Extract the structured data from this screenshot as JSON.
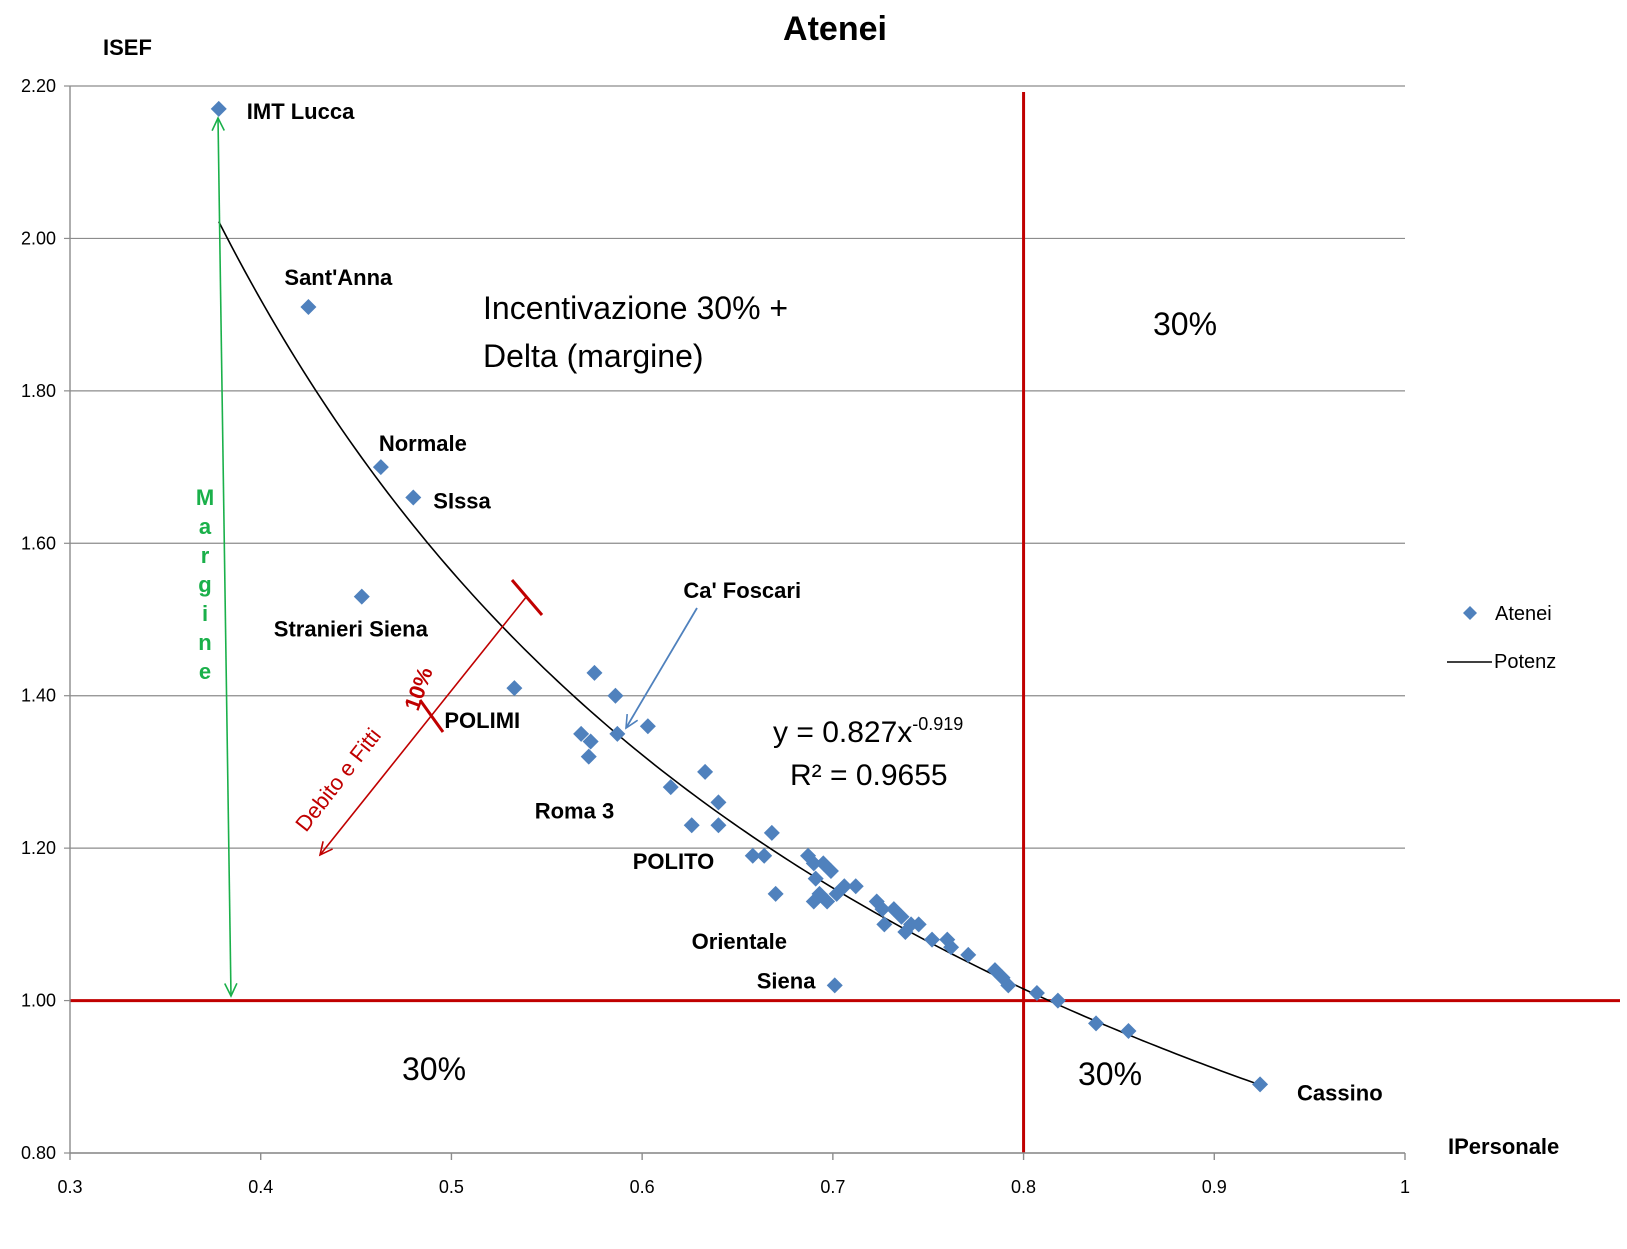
{
  "chart_data": {
    "type": "scatter",
    "title": "Atenei",
    "xlabel": "IPersonale",
    "ylabel": "ISEF",
    "xlim": [
      0.3,
      1.0
    ],
    "ylim": [
      0.8,
      2.2
    ],
    "x_ticks": [
      "0.3",
      "0.4",
      "0.5",
      "0.6",
      "0.7",
      "0.8",
      "0.9",
      "1"
    ],
    "y_ticks": [
      "0.80",
      "1.00",
      "1.20",
      "1.40",
      "1.60",
      "1.80",
      "2.00",
      "2.20"
    ],
    "grid": "horizontal",
    "legend_position": "right",
    "colors": {
      "points": "#4f81bd",
      "trend": "#000000",
      "thresholds": "#c00000",
      "margine": "#1ab04a"
    },
    "series": [
      {
        "name": "Atenei",
        "points": [
          {
            "x": 0.378,
            "y": 2.17
          },
          {
            "x": 0.425,
            "y": 1.91
          },
          {
            "x": 0.463,
            "y": 1.7
          },
          {
            "x": 0.48,
            "y": 1.66
          },
          {
            "x": 0.453,
            "y": 1.53
          },
          {
            "x": 0.533,
            "y": 1.41
          },
          {
            "x": 0.575,
            "y": 1.43
          },
          {
            "x": 0.586,
            "y": 1.4
          },
          {
            "x": 0.587,
            "y": 1.35
          },
          {
            "x": 0.603,
            "y": 1.36
          },
          {
            "x": 0.568,
            "y": 1.35
          },
          {
            "x": 0.573,
            "y": 1.34
          },
          {
            "x": 0.572,
            "y": 1.32
          },
          {
            "x": 0.633,
            "y": 1.3
          },
          {
            "x": 0.615,
            "y": 1.28
          },
          {
            "x": 0.64,
            "y": 1.26
          },
          {
            "x": 0.626,
            "y": 1.23
          },
          {
            "x": 0.64,
            "y": 1.23
          },
          {
            "x": 0.668,
            "y": 1.22
          },
          {
            "x": 0.658,
            "y": 1.19
          },
          {
            "x": 0.664,
            "y": 1.19
          },
          {
            "x": 0.67,
            "y": 1.14
          },
          {
            "x": 0.687,
            "y": 1.19
          },
          {
            "x": 0.69,
            "y": 1.18
          },
          {
            "x": 0.695,
            "y": 1.18
          },
          {
            "x": 0.699,
            "y": 1.17
          },
          {
            "x": 0.691,
            "y": 1.16
          },
          {
            "x": 0.693,
            "y": 1.14
          },
          {
            "x": 0.69,
            "y": 1.13
          },
          {
            "x": 0.697,
            "y": 1.13
          },
          {
            "x": 0.702,
            "y": 1.14
          },
          {
            "x": 0.706,
            "y": 1.15
          },
          {
            "x": 0.712,
            "y": 1.15
          },
          {
            "x": 0.723,
            "y": 1.13
          },
          {
            "x": 0.726,
            "y": 1.12
          },
          {
            "x": 0.732,
            "y": 1.12
          },
          {
            "x": 0.727,
            "y": 1.1
          },
          {
            "x": 0.736,
            "y": 1.11
          },
          {
            "x": 0.741,
            "y": 1.1
          },
          {
            "x": 0.738,
            "y": 1.09
          },
          {
            "x": 0.745,
            "y": 1.1
          },
          {
            "x": 0.752,
            "y": 1.08
          },
          {
            "x": 0.76,
            "y": 1.08
          },
          {
            "x": 0.762,
            "y": 1.07
          },
          {
            "x": 0.771,
            "y": 1.06
          },
          {
            "x": 0.785,
            "y": 1.04
          },
          {
            "x": 0.789,
            "y": 1.03
          },
          {
            "x": 0.792,
            "y": 1.02
          },
          {
            "x": 0.807,
            "y": 1.01
          },
          {
            "x": 0.818,
            "y": 1.0
          },
          {
            "x": 0.838,
            "y": 0.97
          },
          {
            "x": 0.855,
            "y": 0.96
          },
          {
            "x": 0.924,
            "y": 0.89
          },
          {
            "x": 0.701,
            "y": 1.02
          }
        ]
      },
      {
        "name": "Potenz",
        "type": "power-trendline",
        "coefficient": 0.827,
        "exponent": -0.919,
        "x_range": [
          0.378,
          0.924
        ]
      }
    ],
    "point_labels": [
      {
        "text": "IMT Lucca",
        "x": 0.378,
        "y": 2.17
      },
      {
        "text": "Sant'Anna",
        "x": 0.425,
        "y": 1.91
      },
      {
        "text": "Normale",
        "x": 0.463,
        "y": 1.7
      },
      {
        "text": "SIssa",
        "x": 0.48,
        "y": 1.66
      },
      {
        "text": "Stranieri Siena",
        "x": 0.453,
        "y": 1.53
      },
      {
        "text": "POLIMI",
        "x": 0.533,
        "y": 1.41
      },
      {
        "text": "Ca' Foscari",
        "x": 0.587,
        "y": 1.35
      },
      {
        "text": "Roma 3",
        "x": 0.572,
        "y": 1.32
      },
      {
        "text": "POLITO",
        "x": 0.658,
        "y": 1.19
      },
      {
        "text": "Orientale",
        "x": 0.67,
        "y": 1.14
      },
      {
        "text": "Siena",
        "x": 0.701,
        "y": 1.02
      },
      {
        "text": "Cassino",
        "x": 0.924,
        "y": 0.89
      }
    ],
    "reference_lines": [
      {
        "orientation": "horizontal",
        "y": 1.0
      },
      {
        "orientation": "vertical",
        "x": 0.8
      }
    ],
    "annotations": {
      "upper_left": [
        "Incentivazione 30% +",
        "Delta (margine)"
      ],
      "upper_right": "30%",
      "lower_left": "30%",
      "lower_right": "30%",
      "equation_base": "y = 0.827x",
      "equation_exp": "-0.919",
      "r_squared": "R² = 0.9655",
      "margine": "Margine",
      "debito": "Debito e Fitti",
      "ten_pct": "10%"
    }
  }
}
